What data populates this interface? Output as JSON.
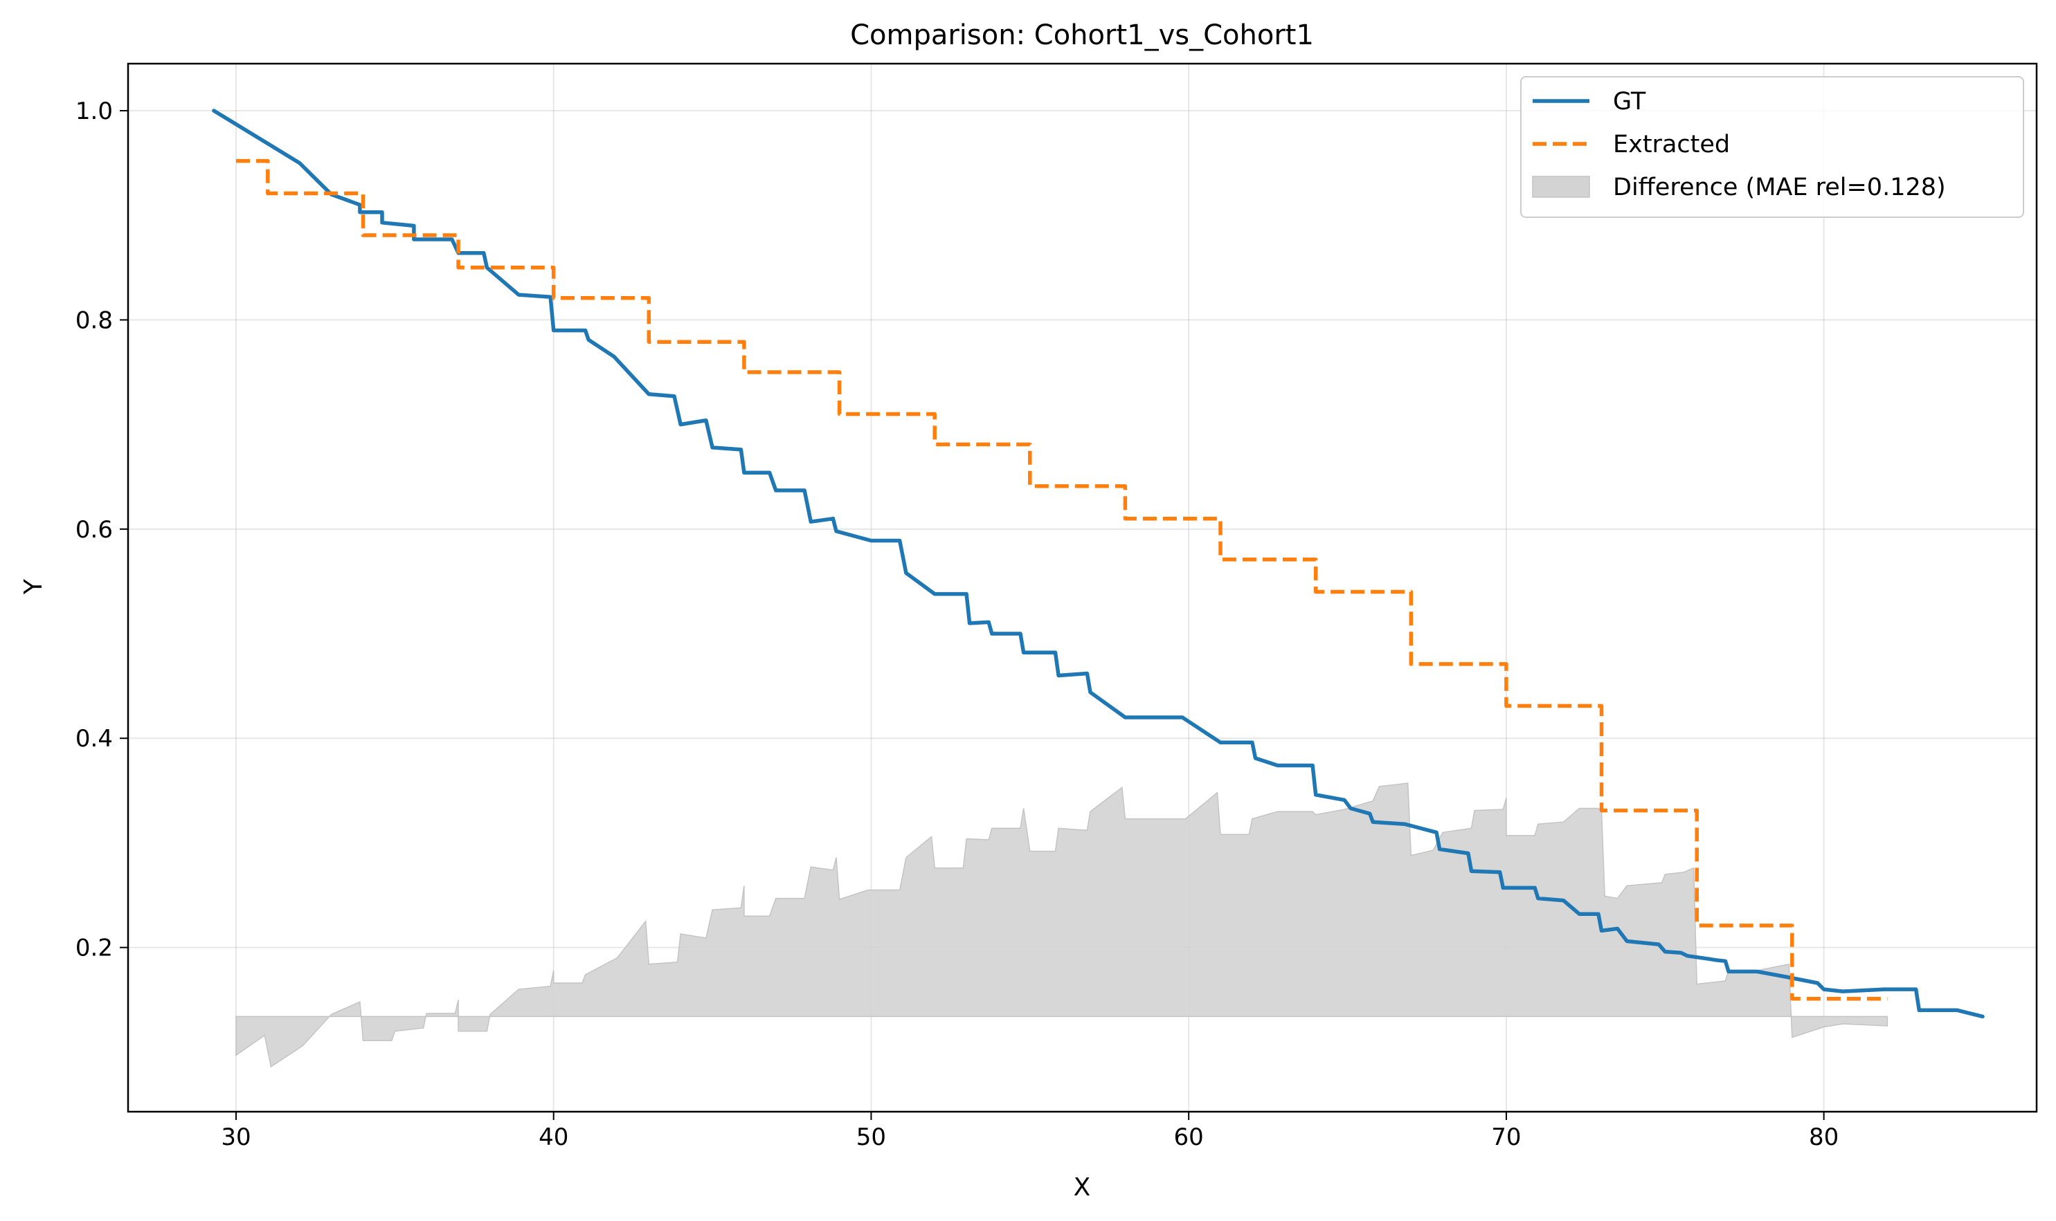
{
  "chart_data": {
    "type": "line",
    "title": "Comparison: Cohort1_vs_Cohort1",
    "xlabel": "X",
    "ylabel": "Y",
    "xlim": [
      26.6,
      86.7
    ],
    "ylim": [
      0.043,
      1.045
    ],
    "xticks": [
      30,
      40,
      50,
      60,
      70,
      80
    ],
    "xtick_labels": [
      "30",
      "40",
      "50",
      "60",
      "70",
      "80"
    ],
    "yticks": [
      0.2,
      0.4,
      0.6,
      0.8,
      1.0
    ],
    "ytick_labels": [
      "0.2",
      "0.4",
      "0.6",
      "0.8",
      "1.0"
    ],
    "grid": true,
    "legend_position": "top-right",
    "series": [
      {
        "name": "GT",
        "style": "solid",
        "color": "#1f77b4",
        "points": [
          [
            29.3,
            1.0
          ],
          [
            32.0,
            0.95
          ],
          [
            33.0,
            0.92
          ],
          [
            33.9,
            0.91
          ],
          [
            33.9,
            0.903
          ],
          [
            34.6,
            0.903
          ],
          [
            34.6,
            0.893
          ],
          [
            35.6,
            0.89
          ],
          [
            35.6,
            0.877
          ],
          [
            36.8,
            0.877
          ],
          [
            37.0,
            0.864
          ],
          [
            37.8,
            0.864
          ],
          [
            37.9,
            0.85
          ],
          [
            38.9,
            0.824
          ],
          [
            39.9,
            0.822
          ],
          [
            40.0,
            0.79
          ],
          [
            41.0,
            0.79
          ],
          [
            41.1,
            0.781
          ],
          [
            41.9,
            0.765
          ],
          [
            43.0,
            0.729
          ],
          [
            43.8,
            0.727
          ],
          [
            44.0,
            0.7
          ],
          [
            44.8,
            0.704
          ],
          [
            45.0,
            0.678
          ],
          [
            45.9,
            0.676
          ],
          [
            46.0,
            0.654
          ],
          [
            46.8,
            0.654
          ],
          [
            47.0,
            0.637
          ],
          [
            47.9,
            0.637
          ],
          [
            48.1,
            0.607
          ],
          [
            48.8,
            0.61
          ],
          [
            48.9,
            0.598
          ],
          [
            50.0,
            0.589
          ],
          [
            50.9,
            0.589
          ],
          [
            51.1,
            0.558
          ],
          [
            52.0,
            0.538
          ],
          [
            53.0,
            0.538
          ],
          [
            53.1,
            0.51
          ],
          [
            53.7,
            0.511
          ],
          [
            53.8,
            0.5
          ],
          [
            54.7,
            0.5
          ],
          [
            54.8,
            0.482
          ],
          [
            55.8,
            0.482
          ],
          [
            55.9,
            0.46
          ],
          [
            56.8,
            0.462
          ],
          [
            56.9,
            0.444
          ],
          [
            58.0,
            0.42
          ],
          [
            59.8,
            0.42
          ],
          [
            61.0,
            0.396
          ],
          [
            62.0,
            0.396
          ],
          [
            62.1,
            0.381
          ],
          [
            62.8,
            0.374
          ],
          [
            63.9,
            0.374
          ],
          [
            64.0,
            0.346
          ],
          [
            64.9,
            0.341
          ],
          [
            65.1,
            0.333
          ],
          [
            65.7,
            0.328
          ],
          [
            65.8,
            0.32
          ],
          [
            66.8,
            0.318
          ],
          [
            67.8,
            0.31
          ],
          [
            67.9,
            0.294
          ],
          [
            68.8,
            0.29
          ],
          [
            68.9,
            0.273
          ],
          [
            69.8,
            0.272
          ],
          [
            69.9,
            0.257
          ],
          [
            70.9,
            0.257
          ],
          [
            71.0,
            0.247
          ],
          [
            71.8,
            0.245
          ],
          [
            72.3,
            0.232
          ],
          [
            72.9,
            0.232
          ],
          [
            73.0,
            0.216
          ],
          [
            73.5,
            0.218
          ],
          [
            73.8,
            0.206
          ],
          [
            74.8,
            0.203
          ],
          [
            75.0,
            0.196
          ],
          [
            75.5,
            0.195
          ],
          [
            75.7,
            0.192
          ],
          [
            76.4,
            0.189
          ],
          [
            76.6,
            0.188
          ],
          [
            76.9,
            0.187
          ],
          [
            77.0,
            0.177
          ],
          [
            77.9,
            0.177
          ],
          [
            78.8,
            0.172
          ],
          [
            79.8,
            0.166
          ],
          [
            80.0,
            0.16
          ],
          [
            80.6,
            0.158
          ],
          [
            81.9,
            0.16
          ],
          [
            82.9,
            0.16
          ],
          [
            83.0,
            0.14
          ],
          [
            84.2,
            0.14
          ],
          [
            85.0,
            0.134
          ]
        ]
      },
      {
        "name": "Extracted",
        "style": "dashed",
        "color": "#ff7f0e",
        "points": [
          [
            30.0,
            0.952
          ],
          [
            31.0,
            0.952
          ],
          [
            31.0,
            0.921
          ],
          [
            34.0,
            0.921
          ],
          [
            34.0,
            0.881
          ],
          [
            37.0,
            0.881
          ],
          [
            37.0,
            0.85
          ],
          [
            40.0,
            0.85
          ],
          [
            40.0,
            0.821
          ],
          [
            43.0,
            0.821
          ],
          [
            43.0,
            0.779
          ],
          [
            46.0,
            0.779
          ],
          [
            46.0,
            0.75
          ],
          [
            49.0,
            0.75
          ],
          [
            49.0,
            0.71
          ],
          [
            52.0,
            0.71
          ],
          [
            52.0,
            0.681
          ],
          [
            55.0,
            0.681
          ],
          [
            55.0,
            0.641
          ],
          [
            58.0,
            0.641
          ],
          [
            58.0,
            0.61
          ],
          [
            61.0,
            0.61
          ],
          [
            61.0,
            0.571
          ],
          [
            64.0,
            0.571
          ],
          [
            64.0,
            0.54
          ],
          [
            67.0,
            0.54
          ],
          [
            67.0,
            0.471
          ],
          [
            70.0,
            0.471
          ],
          [
            70.0,
            0.431
          ],
          [
            73.0,
            0.431
          ],
          [
            73.0,
            0.331
          ],
          [
            76.0,
            0.331
          ],
          [
            76.0,
            0.221
          ],
          [
            79.0,
            0.221
          ],
          [
            79.0,
            0.151
          ],
          [
            82.0,
            0.151
          ]
        ]
      },
      {
        "name": "Difference (MAE rel=0.128)",
        "style": "fill",
        "color": "#d3d3d3",
        "baseline": 0.134,
        "points": [
          [
            30.0,
            0.097
          ],
          [
            30.9,
            0.116
          ],
          [
            31.1,
            0.086
          ],
          [
            32.1,
            0.106
          ],
          [
            33.0,
            0.136
          ],
          [
            33.9,
            0.148
          ],
          [
            34.0,
            0.111
          ],
          [
            34.9,
            0.111
          ],
          [
            35.0,
            0.12
          ],
          [
            35.9,
            0.123
          ],
          [
            36.0,
            0.137
          ],
          [
            36.9,
            0.137
          ],
          [
            37.0,
            0.15
          ],
          [
            37.0,
            0.12
          ],
          [
            37.9,
            0.12
          ],
          [
            38.0,
            0.136
          ],
          [
            38.9,
            0.16
          ],
          [
            39.9,
            0.163
          ],
          [
            40.0,
            0.178
          ],
          [
            40.0,
            0.166
          ],
          [
            40.9,
            0.166
          ],
          [
            41.0,
            0.174
          ],
          [
            42.0,
            0.19
          ],
          [
            42.9,
            0.225
          ],
          [
            43.0,
            0.184
          ],
          [
            43.9,
            0.186
          ],
          [
            44.0,
            0.213
          ],
          [
            44.8,
            0.209
          ],
          [
            45.0,
            0.236
          ],
          [
            45.9,
            0.238
          ],
          [
            46.0,
            0.259
          ],
          [
            46.0,
            0.23
          ],
          [
            46.8,
            0.23
          ],
          [
            47.0,
            0.247
          ],
          [
            47.9,
            0.247
          ],
          [
            48.1,
            0.277
          ],
          [
            48.8,
            0.274
          ],
          [
            48.9,
            0.286
          ],
          [
            49.0,
            0.246
          ],
          [
            49.9,
            0.255
          ],
          [
            50.9,
            0.255
          ],
          [
            51.1,
            0.286
          ],
          [
            51.9,
            0.306
          ],
          [
            52.0,
            0.276
          ],
          [
            52.9,
            0.276
          ],
          [
            53.0,
            0.304
          ],
          [
            53.7,
            0.303
          ],
          [
            53.8,
            0.314
          ],
          [
            54.7,
            0.314
          ],
          [
            54.8,
            0.333
          ],
          [
            55.0,
            0.292
          ],
          [
            55.8,
            0.292
          ],
          [
            55.9,
            0.314
          ],
          [
            56.8,
            0.312
          ],
          [
            56.9,
            0.33
          ],
          [
            57.9,
            0.353
          ],
          [
            58.0,
            0.323
          ],
          [
            59.9,
            0.323
          ],
          [
            60.9,
            0.348
          ],
          [
            61.0,
            0.308
          ],
          [
            61.9,
            0.308
          ],
          [
            62.0,
            0.323
          ],
          [
            62.8,
            0.33
          ],
          [
            63.9,
            0.33
          ],
          [
            64.0,
            0.327
          ],
          [
            64.0,
            0.327
          ],
          [
            64.9,
            0.332
          ],
          [
            65.8,
            0.34
          ],
          [
            66.0,
            0.354
          ],
          [
            66.9,
            0.357
          ],
          [
            67.0,
            0.288
          ],
          [
            67.7,
            0.293
          ],
          [
            68.0,
            0.31
          ],
          [
            68.9,
            0.314
          ],
          [
            69.0,
            0.331
          ],
          [
            69.9,
            0.332
          ],
          [
            70.0,
            0.343
          ],
          [
            70.0,
            0.307
          ],
          [
            70.9,
            0.307
          ],
          [
            71.0,
            0.318
          ],
          [
            71.8,
            0.32
          ],
          [
            72.3,
            0.333
          ],
          [
            72.9,
            0.333
          ],
          [
            73.0,
            0.331
          ],
          [
            73.1,
            0.249
          ],
          [
            73.5,
            0.247
          ],
          [
            73.8,
            0.259
          ],
          [
            74.9,
            0.262
          ],
          [
            75.0,
            0.27
          ],
          [
            75.6,
            0.272
          ],
          [
            75.9,
            0.276
          ],
          [
            76.0,
            0.165
          ],
          [
            76.6,
            0.167
          ],
          [
            76.9,
            0.168
          ],
          [
            77.0,
            0.178
          ],
          [
            77.9,
            0.178
          ],
          [
            78.9,
            0.184
          ],
          [
            79.0,
            0.114
          ],
          [
            80.0,
            0.124
          ],
          [
            80.6,
            0.127
          ],
          [
            82.0,
            0.125
          ]
        ]
      }
    ]
  }
}
